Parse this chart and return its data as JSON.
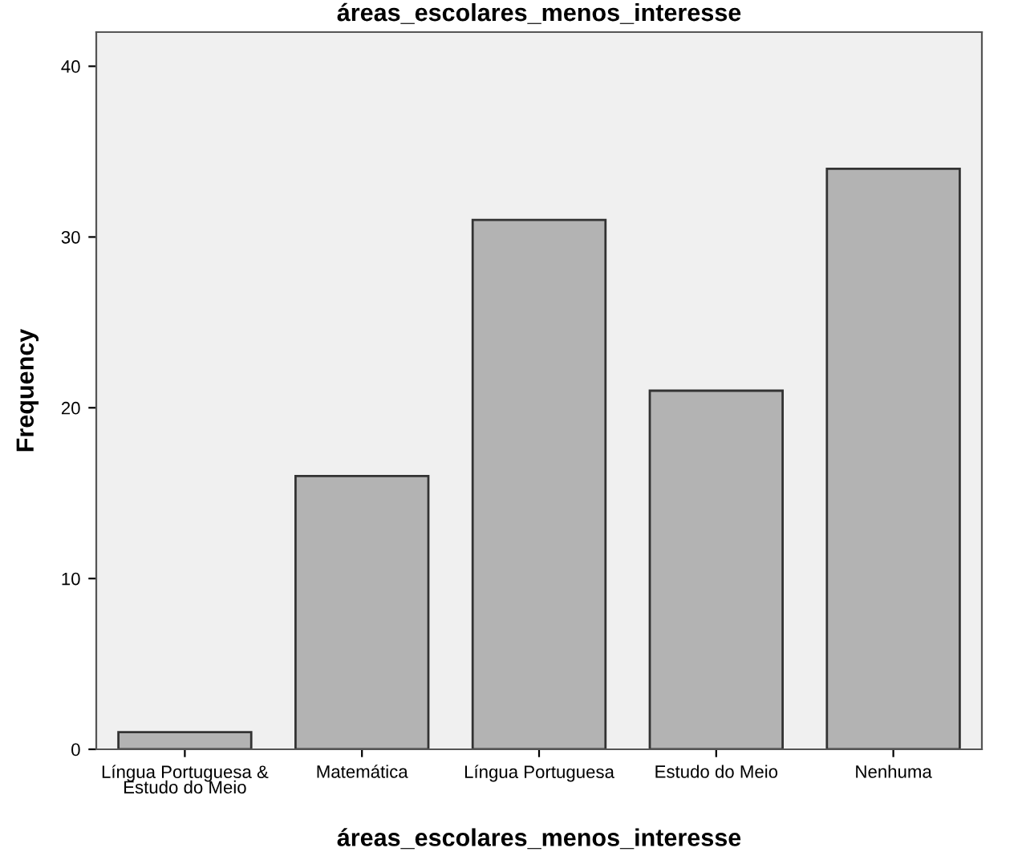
{
  "chart_data": {
    "type": "bar",
    "title": "áreas_escolares_menos_interesse",
    "xlabel": "áreas_escolares_menos_interesse",
    "ylabel": "Frequency",
    "categories": [
      "Língua Portuguesa &\nEstudo do Meio",
      "Matemática",
      "Língua Portuguesa",
      "Estudo do Meio",
      "Nenhuma"
    ],
    "values": [
      1,
      16,
      31,
      21,
      34
    ],
    "color": "#b3b3b3",
    "ylim": [
      0,
      42
    ],
    "yticks": [
      0,
      10,
      20,
      30,
      40
    ],
    "grid": false
  }
}
